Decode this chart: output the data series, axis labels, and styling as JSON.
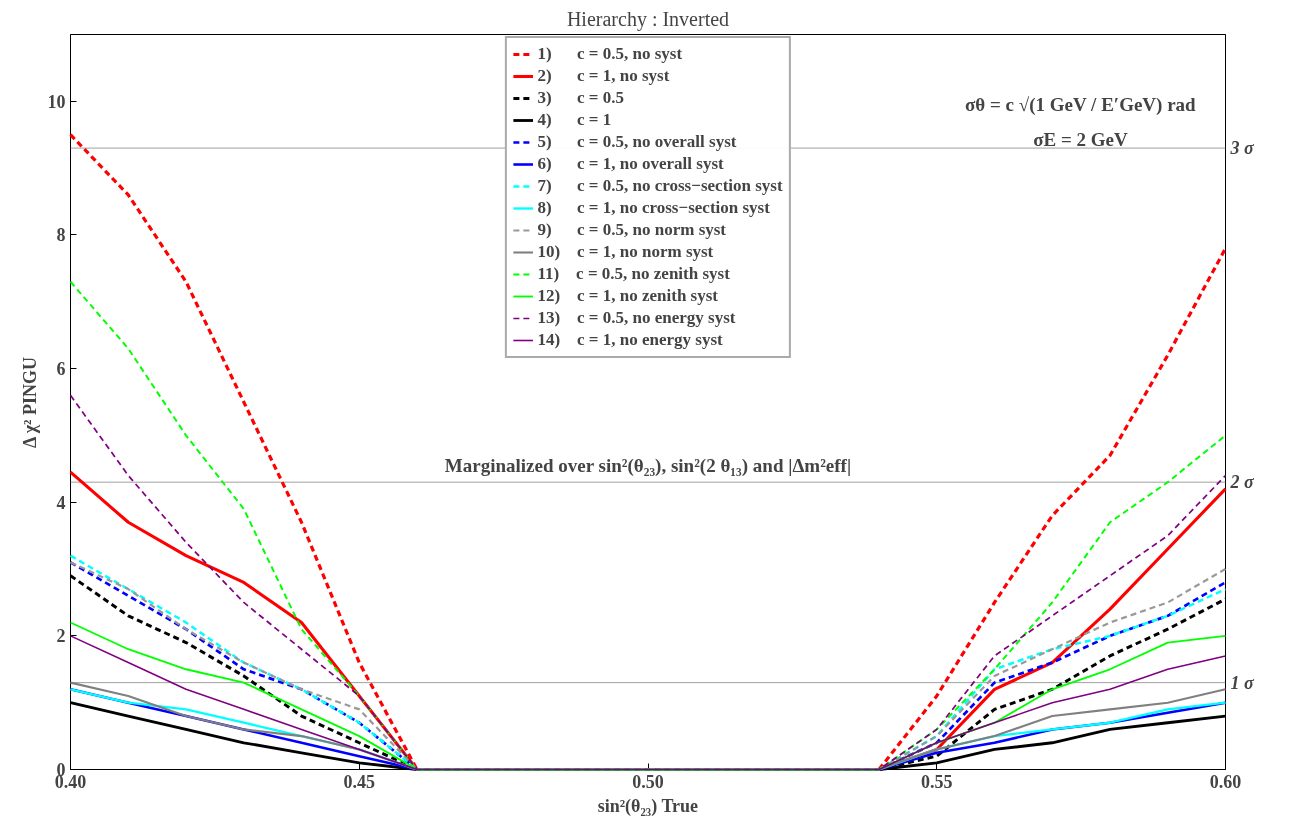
{
  "chart_data": {
    "type": "line",
    "title": "Hierarchy : Inverted",
    "xlabel": "sin²(θ₂₃) True",
    "ylabel": "Δ χ² PINGU",
    "annotations": [
      "σθ = c √(1 GeV / E′GeV) rad",
      "σE = 2 GeV",
      "Marginalized over sin²(θ₂₃),  sin²(2 θ₁₃) and |Δm²eff|"
    ],
    "x": [
      0.4,
      0.41,
      0.42,
      0.43,
      0.44,
      0.45,
      0.46,
      0.47,
      0.48,
      0.49,
      0.5,
      0.51,
      0.52,
      0.53,
      0.54,
      0.55,
      0.56,
      0.57,
      0.58,
      0.59,
      0.6
    ],
    "xlim": [
      0.4,
      0.6
    ],
    "xticks": [
      {
        "value": 0.4,
        "label": "0.40"
      },
      {
        "value": 0.45,
        "label": "0.45"
      },
      {
        "value": 0.5,
        "label": "0.50"
      },
      {
        "value": 0.55,
        "label": "0.55"
      },
      {
        "value": 0.6,
        "label": "0.60"
      }
    ],
    "ylim": [
      0,
      11
    ],
    "yticks": [
      0,
      2,
      4,
      6,
      8,
      10
    ],
    "grid": false,
    "legend": "top",
    "marker": "none",
    "ref_lines": [
      {
        "axis": "y",
        "value": 9.3,
        "label": "3 σ",
        "color": "#a0a0a0"
      },
      {
        "axis": "y",
        "value": 4.3,
        "label": "2 σ",
        "color": "#a0a0a0"
      },
      {
        "axis": "y",
        "value": 1.3,
        "label": "1 σ",
        "color": "#a0a0a0"
      }
    ],
    "series": [
      {
        "name": "1)      c = 0.5, no syst",
        "color": "#ff0000",
        "line_style": "dashed",
        "values": [
          9.5,
          8.6,
          7.3,
          5.5,
          3.7,
          1.6,
          0,
          0,
          0,
          0,
          0,
          0,
          0,
          0,
          0,
          1.1,
          2.5,
          3.8,
          4.7,
          6.2,
          7.8
        ]
      },
      {
        "name": "2)      c = 1, no syst",
        "color": "#ff0000",
        "line_style": "solid",
        "values": [
          4.45,
          3.7,
          3.2,
          2.8,
          2.2,
          1.1,
          0,
          0,
          0,
          0,
          0,
          0,
          0,
          0,
          0,
          0.3,
          1.2,
          1.6,
          2.4,
          3.3,
          4.2
        ]
      },
      {
        "name": "3)      c = 0.5",
        "color": "#000000",
        "line_style": "dashed",
        "values": [
          2.9,
          2.3,
          1.9,
          1.4,
          0.8,
          0.4,
          0,
          0,
          0,
          0,
          0,
          0,
          0,
          0,
          0,
          0.2,
          0.9,
          1.2,
          1.7,
          2.1,
          2.55
        ]
      },
      {
        "name": "4)      c = 1",
        "color": "#000000",
        "line_style": "solid",
        "values": [
          1.0,
          0.8,
          0.6,
          0.4,
          0.25,
          0.1,
          0,
          0,
          0,
          0,
          0,
          0,
          0,
          0,
          0,
          0.1,
          0.3,
          0.4,
          0.6,
          0.7,
          0.8
        ]
      },
      {
        "name": "5)      c = 0.5, no overall syst",
        "color": "#0000ff",
        "line_style": "dashed",
        "values": [
          3.1,
          2.6,
          2.1,
          1.5,
          1.2,
          0.7,
          0,
          0,
          0,
          0,
          0,
          0,
          0,
          0,
          0,
          0.4,
          1.3,
          1.6,
          2.0,
          2.3,
          2.8
        ]
      },
      {
        "name": "6)      c = 1, no overall syst",
        "color": "#0000ff",
        "line_style": "solid",
        "values": [
          1.2,
          1.0,
          0.8,
          0.6,
          0.4,
          0.2,
          0,
          0,
          0,
          0,
          0,
          0,
          0,
          0,
          0,
          0.25,
          0.4,
          0.6,
          0.7,
          0.85,
          1.0
        ]
      },
      {
        "name": "7)      c = 0.5, no cross−section syst",
        "color": "#00ffff",
        "line_style": "dashed",
        "values": [
          3.2,
          2.7,
          2.2,
          1.6,
          1.2,
          0.7,
          0,
          0,
          0,
          0,
          0,
          0,
          0,
          0,
          0,
          0.5,
          1.5,
          1.8,
          2.0,
          2.3,
          2.7
        ]
      },
      {
        "name": "8)      c = 1, no cross−section syst",
        "color": "#00ffff",
        "line_style": "solid",
        "values": [
          1.2,
          1.0,
          0.9,
          0.7,
          0.5,
          0.3,
          0,
          0,
          0,
          0,
          0,
          0,
          0,
          0,
          0,
          0.3,
          0.5,
          0.6,
          0.7,
          0.9,
          1.0
        ]
      },
      {
        "name": "9)      c = 0.5, no norm syst",
        "color": "#999999",
        "line_style": "dashed",
        "values": [
          3.1,
          2.7,
          2.1,
          1.6,
          1.2,
          0.9,
          0,
          0,
          0,
          0,
          0,
          0,
          0,
          0,
          0,
          0.5,
          1.4,
          1.8,
          2.2,
          2.5,
          3.0
        ]
      },
      {
        "name": "10)    c = 1, no norm syst",
        "color": "#808080",
        "line_style": "solid",
        "values": [
          1.3,
          1.1,
          0.8,
          0.6,
          0.5,
          0.3,
          0,
          0,
          0,
          0,
          0,
          0,
          0,
          0,
          0,
          0.3,
          0.5,
          0.8,
          0.9,
          1.0,
          1.2
        ]
      },
      {
        "name": "11)    c = 0.5, no zenith syst",
        "color": "#00ff00",
        "line_style": "dashed",
        "values": [
          7.3,
          6.3,
          5.0,
          3.9,
          2.1,
          1.1,
          0,
          0,
          0,
          0,
          0,
          0,
          0,
          0,
          0,
          0.6,
          1.5,
          2.5,
          3.7,
          4.3,
          5.0
        ]
      },
      {
        "name": "12)    c = 1, no zenith syst",
        "color": "#00ff00",
        "line_style": "solid",
        "values": [
          2.2,
          1.8,
          1.5,
          1.3,
          0.9,
          0.5,
          0,
          0,
          0,
          0,
          0,
          0,
          0,
          0,
          0,
          0.4,
          0.7,
          1.2,
          1.5,
          1.9,
          2.0
        ]
      },
      {
        "name": "13)    c = 0.5, no energy syst",
        "color": "#800080",
        "line_style": "dashed",
        "values": [
          5.6,
          4.4,
          3.4,
          2.5,
          1.8,
          1.1,
          0,
          0,
          0,
          0,
          0,
          0,
          0,
          0,
          0,
          0.6,
          1.7,
          2.3,
          2.9,
          3.5,
          4.4
        ]
      },
      {
        "name": "14)    c = 1, no energy syst",
        "color": "#800080",
        "line_style": "solid",
        "values": [
          2.0,
          1.6,
          1.2,
          0.9,
          0.6,
          0.3,
          0,
          0,
          0,
          0,
          0,
          0,
          0,
          0,
          0,
          0.4,
          0.7,
          1.0,
          1.2,
          1.5,
          1.7
        ]
      }
    ]
  }
}
